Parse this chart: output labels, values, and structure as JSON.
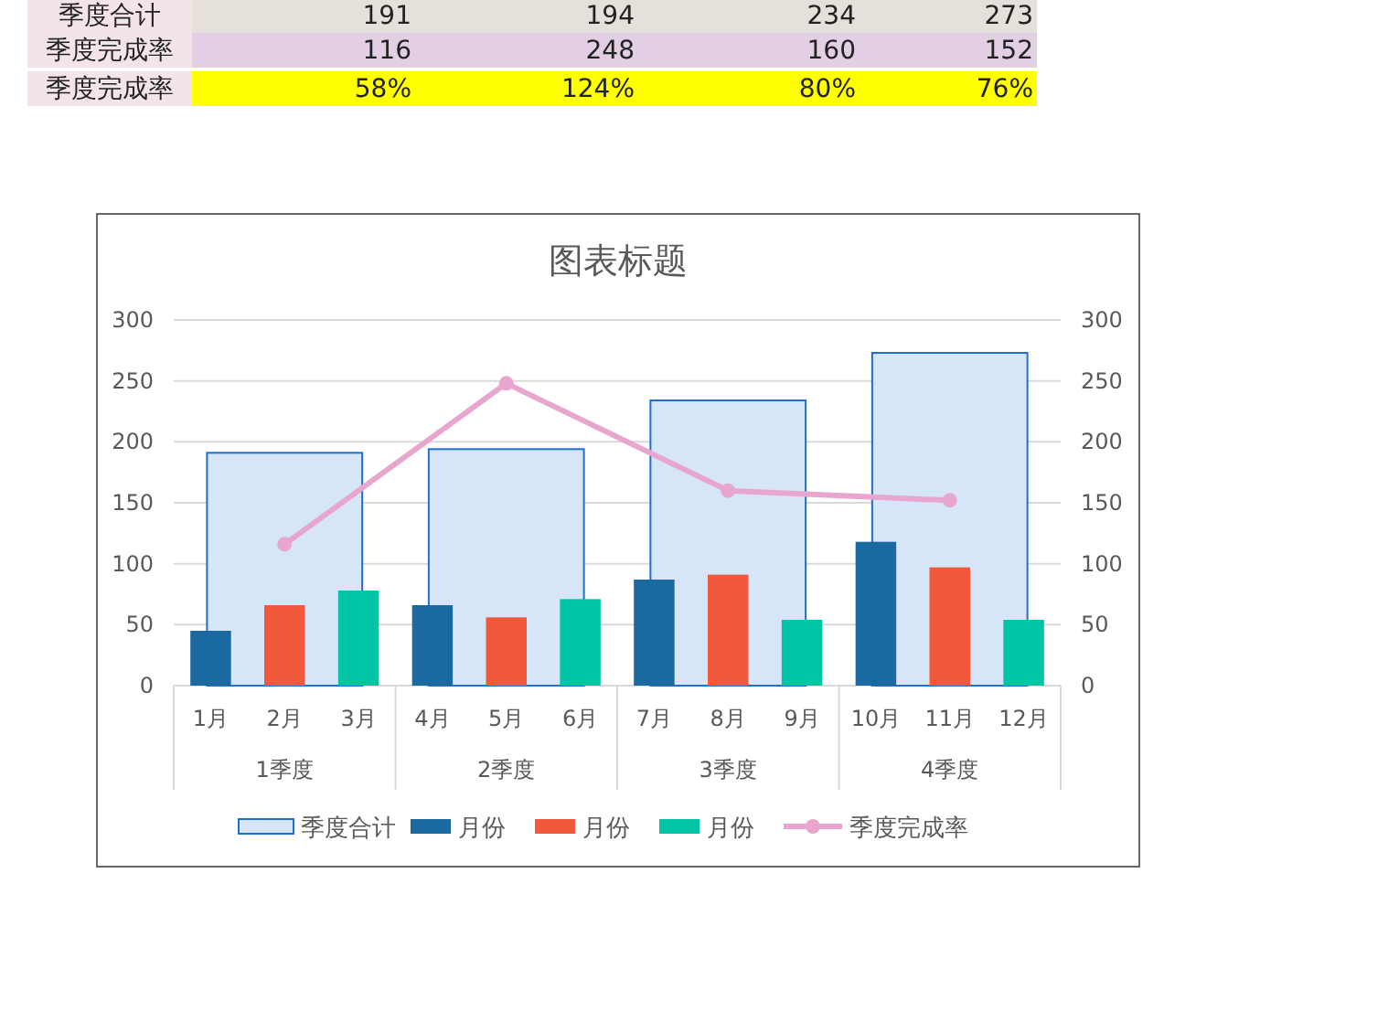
{
  "chart_data": {
    "type": "bar",
    "title": "图表标题",
    "categories": [
      "1月",
      "2月",
      "3月",
      "4月",
      "5月",
      "6月",
      "7月",
      "8月",
      "9月",
      "10月",
      "11月",
      "12月"
    ],
    "series": [
      {
        "name": "季度合计",
        "color": "#d6e6f8",
        "values": [
          null,
          191,
          null,
          null,
          194,
          null,
          null,
          234,
          null,
          null,
          273,
          null
        ]
      },
      {
        "name": "月份",
        "color": "#1b69a1",
        "values": [
          45,
          null,
          null,
          66,
          null,
          null,
          87,
          null,
          null,
          118,
          null,
          null
        ]
      },
      {
        "name": "月份",
        "color": "#f2583a",
        "values": [
          null,
          66,
          null,
          null,
          56,
          null,
          null,
          91,
          null,
          null,
          97,
          null
        ]
      },
      {
        "name": "月份",
        "color": "#00c4a6",
        "values": [
          null,
          null,
          78,
          null,
          null,
          71,
          null,
          null,
          54,
          null,
          null,
          54
        ]
      },
      {
        "name": "季度完成率",
        "type": "line",
        "axis": "y2",
        "color": "#e8a6cf",
        "values": [
          null,
          116,
          null,
          null,
          248,
          null,
          null,
          160,
          null,
          null,
          152,
          null
        ]
      }
    ],
    "ylim": [
      0,
      300
    ],
    "yticks": [
      0,
      50,
      100,
      150,
      200,
      250,
      300
    ],
    "y2lim": [
      0,
      300
    ],
    "y2ticks": [
      0,
      50,
      100,
      150,
      200,
      250,
      300
    ],
    "grid": "y",
    "legend": "bottom",
    "marker": "circle",
    "annotations": [
      "季度合计",
      "191",
      "194",
      "234",
      "273",
      "季度完成率",
      "116",
      "248",
      "160",
      "152",
      "季度完成率",
      "58%",
      "124%",
      "80%",
      "76%",
      "1季度",
      "2季度",
      "3季度",
      "4季度"
    ]
  }
}
